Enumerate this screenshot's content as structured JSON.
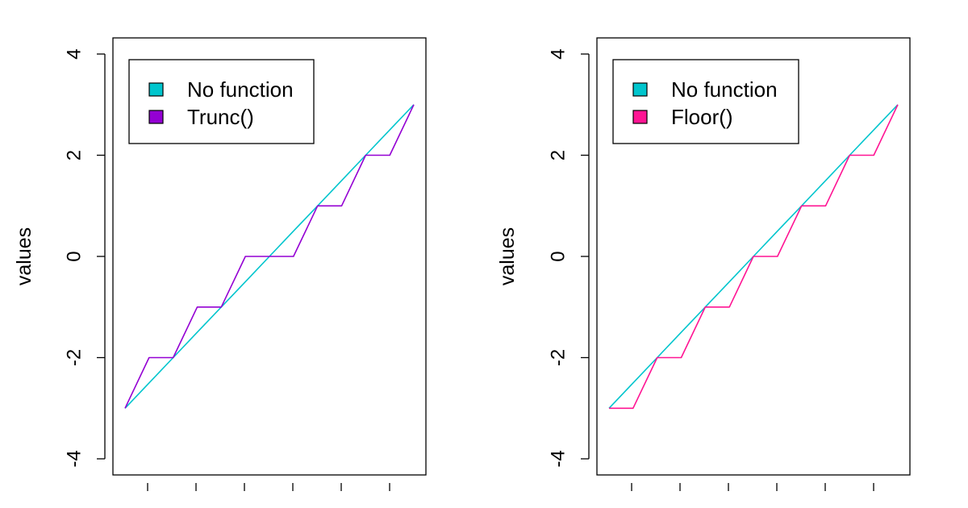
{
  "chart_data": [
    {
      "type": "line",
      "title": "",
      "xlabel": "",
      "ylabel": "values",
      "ylim": [
        -4,
        4
      ],
      "yticks": [
        "-4",
        "-2",
        "0",
        "2",
        "4"
      ],
      "x": [
        -3,
        -2.5,
        -2,
        -1.5,
        -1,
        -0.5,
        0,
        0.5,
        1,
        1.5,
        2,
        2.5,
        3
      ],
      "series": [
        {
          "name": "No function",
          "color": "#00C5CD",
          "values": [
            -3,
            -2.5,
            -2,
            -1.5,
            -1,
            -0.5,
            0,
            0.5,
            1,
            1.5,
            2,
            2.5,
            3
          ]
        },
        {
          "name": "Trunc()",
          "color": "#9400D3",
          "values": [
            -3,
            -2,
            -2,
            -1,
            -1,
            0,
            0,
            0,
            1,
            1,
            2,
            2,
            3
          ]
        }
      ],
      "legend": {
        "position": "top-left"
      },
      "grid": false
    },
    {
      "type": "line",
      "title": "",
      "xlabel": "",
      "ylabel": "values",
      "ylim": [
        -4,
        4
      ],
      "yticks": [
        "-4",
        "-2",
        "0",
        "2",
        "4"
      ],
      "x": [
        -3,
        -2.5,
        -2,
        -1.5,
        -1,
        -0.5,
        0,
        0.5,
        1,
        1.5,
        2,
        2.5,
        3
      ],
      "series": [
        {
          "name": "No function",
          "color": "#00C5CD",
          "values": [
            -3,
            -2.5,
            -2,
            -1.5,
            -1,
            -0.5,
            0,
            0.5,
            1,
            1.5,
            2,
            2.5,
            3
          ]
        },
        {
          "name": "Floor()",
          "color": "#FF1493",
          "values": [
            -3,
            -3,
            -2,
            -2,
            -1,
            -1,
            0,
            0,
            1,
            1,
            2,
            2,
            3
          ]
        }
      ],
      "legend": {
        "position": "top-left"
      },
      "grid": false
    }
  ]
}
